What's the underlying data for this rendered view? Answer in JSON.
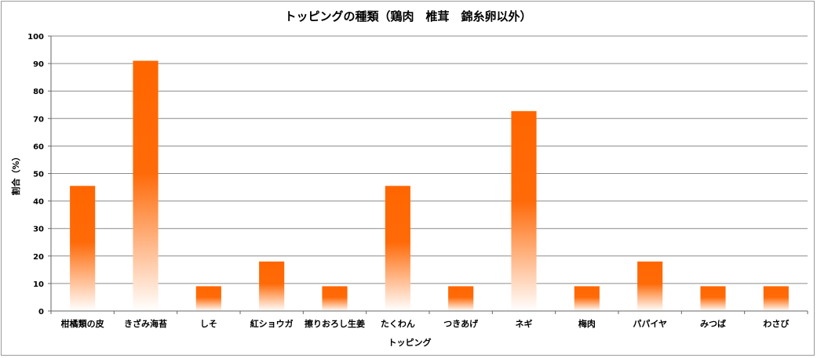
{
  "chart_data": {
    "type": "bar",
    "title": "トッピングの種類（鶏肉　椎茸　錦糸卵以外）",
    "xlabel": "トッピング",
    "ylabel": "割合（%）",
    "ylim": [
      0,
      100
    ],
    "yticks": [
      0,
      10,
      20,
      30,
      40,
      50,
      60,
      70,
      80,
      90,
      100
    ],
    "grid": true,
    "legend": "none",
    "bar_color_top": "#ff6600",
    "bar_color_bottom": "#ffffff",
    "categories": [
      "柑橘類の皮",
      "きざみ海苔",
      "しそ",
      "紅ショウガ",
      "擦りおろし生姜",
      "たくわん",
      "つきあげ",
      "ネギ",
      "梅肉",
      "パパイヤ",
      "みつば",
      "わさび"
    ],
    "values": [
      45.5,
      91,
      9,
      18,
      9,
      45.5,
      9,
      72.7,
      9,
      18,
      9,
      9
    ]
  }
}
